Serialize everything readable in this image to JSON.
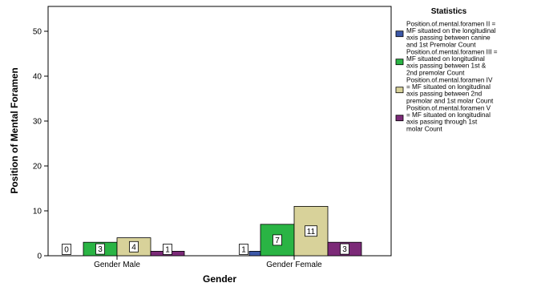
{
  "chart_data": {
    "type": "bar",
    "ylabel": "Position of Mental Foramen",
    "xlabel": "Gender",
    "categories": [
      "Gender Male",
      "Gender Female"
    ],
    "ylim": [
      0,
      55
    ],
    "yticks": [
      0,
      10,
      20,
      30,
      40,
      50
    ],
    "grid": false,
    "legend_position": "right",
    "legend_title": "Statistics",
    "series": [
      {
        "name": "Position.of.mental.foramen II = MF situated on the longitudinal axis passing between canine and 1st Premolar Count",
        "legend_lines": [
          "Position.of.mental.foramen II =",
          "MF situated on the longitudinal",
          "axis passing between canine",
          "and 1st Premolar Count"
        ],
        "color": "#3c58a8",
        "values": [
          0,
          1
        ],
        "labels": [
          "0",
          "1"
        ]
      },
      {
        "name": "Position.of.mental.foramen III = MF situated on longitudinal axis passing between 1st & 2nd premolar Count",
        "legend_lines": [
          "Position.of.mental.foramen III =",
          "MF situated on longitudinal",
          "axis passing between 1st &",
          "2nd premolar Count"
        ],
        "color": "#2ab444",
        "values": [
          3,
          7
        ],
        "labels": [
          "3",
          "7"
        ]
      },
      {
        "name": "Position.of.mental.foramen IV = MF situated on longitudinal axis passing between 2nd premolar and 1st molar Count",
        "legend_lines": [
          "Position.of.mental.foramen IV",
          "= MF situated on longitudinal",
          "axis passing between 2nd",
          "premolar and 1st molar Count"
        ],
        "color": "#d8d29a",
        "values": [
          4,
          11
        ],
        "labels": [
          "4",
          "11"
        ]
      },
      {
        "name": "Position.of.mental.foramen V = MF situated on longitudinal axis passing through 1st molar Count",
        "legend_lines": [
          "Position.of.mental.foramen V",
          "= MF situated on longitudinal",
          "axis passing through 1st",
          "molar Count"
        ],
        "color": "#7c2a78",
        "values": [
          1,
          3
        ],
        "labels": [
          "1",
          "3"
        ]
      }
    ]
  }
}
